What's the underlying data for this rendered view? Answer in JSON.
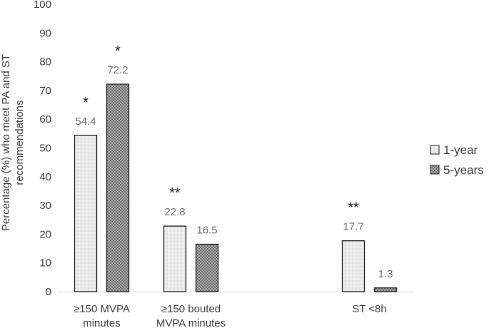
{
  "chart_data": {
    "type": "bar",
    "categories": [
      [
        "≥150 MVPA",
        "minutes"
      ],
      [
        "≥150 bouted",
        "MVPA minutes"
      ],
      [
        "",
        ""
      ],
      [
        "ST <8h",
        ""
      ]
    ],
    "series": [
      {
        "name": "1-year",
        "values": [
          54.4,
          22.8,
          null,
          17.7
        ],
        "labels": [
          "54.4",
          "22.8",
          null,
          "17.7"
        ]
      },
      {
        "name": "5-years",
        "values": [
          72.2,
          16.5,
          null,
          1.3
        ],
        "labels": [
          "72.2",
          "16.5",
          null,
          "1.3"
        ]
      }
    ],
    "significance": [
      {
        "category": 0,
        "series": 0,
        "text": "*"
      },
      {
        "category": 0,
        "series": 1,
        "text": "*"
      },
      {
        "category": 1,
        "series": 0,
        "text": "**"
      },
      {
        "category": 3,
        "series": 0,
        "text": "**"
      }
    ],
    "title": "",
    "xlabel": "",
    "ylabel": [
      "Percentage (%)  who meet PA and ST",
      "recommendations"
    ],
    "ylim": [
      0,
      100
    ],
    "yticks": [
      "0",
      "10",
      "20",
      "30",
      "40",
      "50",
      "60",
      "70",
      "80",
      "90",
      "100"
    ],
    "legend_position": "right",
    "colors": {
      "series1_fill": "#ebebeb",
      "series2_fill": "#8c8c8c",
      "axis": "#d9d9d9",
      "edge": "#222222"
    }
  }
}
